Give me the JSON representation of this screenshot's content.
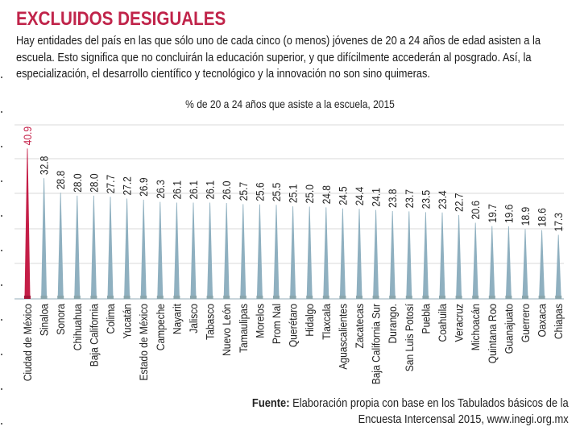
{
  "header": {
    "title": "EXCLUIDOS DESIGUALES",
    "intro_lines": [
      "Hay entidades del país en las que sólo uno de cada cinco (o menos) jóvenes de 20 a 24 años de edad asisten a la",
      "escuela. Esto significa que no concluirán la educación superior, y que difícilmente accederán al posgrado. Así, la",
      "especialización, el desarrollo científico y tecnológico y la innovación no son sino quimeras."
    ]
  },
  "colors": {
    "title": "#c0244a",
    "highlight_bar": "#c41e47",
    "bar": "#8fb0c0",
    "gridline": "#ececec"
  },
  "chart_data": {
    "type": "bar",
    "title": "% de 20 a 24 años que asiste a la escuela, 2015",
    "xlabel": "",
    "ylabel": "",
    "ylim": [
      0,
      45
    ],
    "grid": true,
    "highlight_index": 0,
    "categories": [
      "Ciudad de México",
      "Sinaloa",
      "Sonora",
      "Chihuahua",
      "Baja California",
      "Colima",
      "Yucatán",
      "Estado de México",
      "Campeche",
      "Nayarit",
      "Jalisco",
      "Tabasco",
      "Nuevo León",
      "Tamaulipas",
      "Morelos",
      "Prom Nal",
      "Querétaro",
      "Hidalgo",
      "Tlaxcala",
      "Aguascalientes",
      "Zacatecas",
      "Baja California Sur",
      "Durango.",
      "San Luis Potosí",
      "Puebla",
      "Coahuila",
      "Veracruz",
      "Michoacán",
      "Quintana Roo",
      "Guanajuato",
      "Guerrero",
      "Oaxaca",
      "Chiapas"
    ],
    "values": [
      40.9,
      32.8,
      28.8,
      28.0,
      28.0,
      27.7,
      27.2,
      26.9,
      26.3,
      26.1,
      26.1,
      26.1,
      26.0,
      25.7,
      25.6,
      25.5,
      25.1,
      25.0,
      24.8,
      24.5,
      24.4,
      24.1,
      23.8,
      23.7,
      23.5,
      23.4,
      22.7,
      20.6,
      19.7,
      19.6,
      18.9,
      18.6,
      17.3
    ],
    "value_labels": [
      "40.9",
      "32.8",
      "28.8",
      "28.0",
      "28.0",
      "27.7",
      "27.2",
      "26.9",
      "26.3",
      "26.1",
      "26.1",
      "26.1",
      "26.0",
      "25.7",
      "25.6",
      "25.5",
      "25.1",
      "25.0",
      "24.8",
      "24.5",
      "24.4",
      "24.1",
      "23.8",
      "23.7",
      "23.5",
      "23.4",
      "22.7",
      "20.6",
      "19.7",
      "19.6",
      "18.9",
      "18.6",
      "17.3"
    ]
  },
  "source": {
    "label": "Fuente:",
    "line1": "Elaboración propia con base en los Tabulados básicos de la",
    "line2": "Encuesta Intercensal 2015, www.inegi.org.mx"
  }
}
